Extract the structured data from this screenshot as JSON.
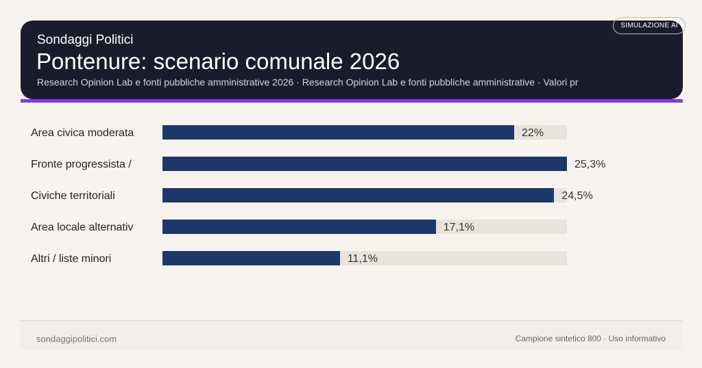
{
  "header": {
    "brand": "Sondaggi Politici",
    "title": "Pontenure: scenario comunale 2026",
    "subtitle": "Research Opinion Lab e fonti pubbliche amministrative 2026 · Research Opinion Lab e fonti pubbliche amministrative · Valori pr",
    "badge": "SIMULAZIONE AI"
  },
  "chart_data": {
    "type": "bar",
    "orientation": "horizontal",
    "categories": [
      "Area civica moderata",
      "Fronte progressista /",
      "Civiche territoriali",
      "Area locale alternativ",
      "Altri / liste minori"
    ],
    "values": [
      22,
      25.3,
      24.5,
      17.1,
      11.1
    ],
    "value_labels": [
      "22%",
      "25,3%",
      "24,5%",
      "17,1%",
      "11,1%"
    ],
    "xlim": [
      0,
      25.3
    ],
    "unit": "%",
    "grid": false,
    "colors": {
      "bar": "#1c3869",
      "track": "#e8e3dc",
      "accent": "#7c3aed"
    }
  },
  "footer": {
    "left": "sondaggipolitici.com",
    "right": "Campione sintetico 800 · Uso informativo"
  }
}
